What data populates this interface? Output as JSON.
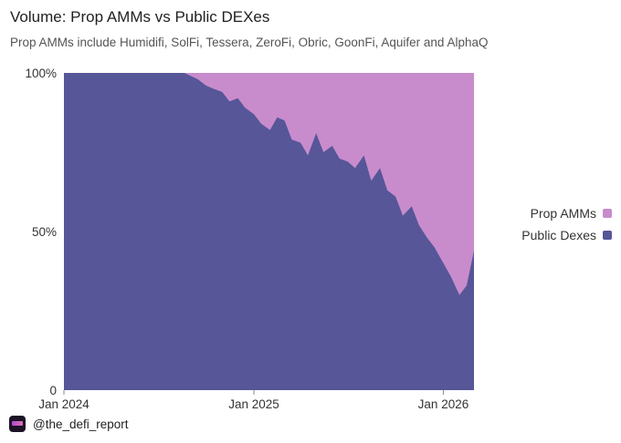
{
  "header": {
    "title": "Volume: Prop AMMs vs Public DEXes",
    "subtitle": "Prop AMMs include Humidifi, SolFi, Tessera, ZeroFi, Obric, GoonFi, Aquifer and AlphaQ"
  },
  "footer": {
    "handle": "@the_defi_report",
    "logo_icon": "defi-report-logo-icon"
  },
  "colors": {
    "prop": "#c88ccc",
    "public": "#565698"
  },
  "chart_data": {
    "type": "area",
    "stacked": true,
    "normalized": true,
    "title": "Volume: Prop AMMs vs Public DEXes",
    "subtitle": "Prop AMMs include Humidifi, SolFi, Tessera, ZeroFi, Obric, GoonFi, Aquifer and AlphaQ",
    "x_ticks": [
      "Jan 2024",
      "Jan 2025",
      "Jan 2026"
    ],
    "y_ticks": [
      "0",
      "50%",
      "100%"
    ],
    "ylim": [
      0,
      100
    ],
    "xlim": [
      "2024-01-01",
      "2026-03-01"
    ],
    "legend_position": "right",
    "legend": [
      "Prop AMMs",
      "Public Dexes"
    ],
    "x": [
      "2024-01-01",
      "2024-03-01",
      "2024-05-01",
      "2024-07-01",
      "2024-08-20",
      "2024-09-15",
      "2024-10-01",
      "2024-10-15",
      "2024-11-01",
      "2024-11-15",
      "2024-12-01",
      "2024-12-15",
      "2025-01-01",
      "2025-01-15",
      "2025-02-01",
      "2025-02-15",
      "2025-03-01",
      "2025-03-15",
      "2025-04-01",
      "2025-04-15",
      "2025-05-01",
      "2025-05-15",
      "2025-06-01",
      "2025-06-15",
      "2025-07-01",
      "2025-07-15",
      "2025-08-01",
      "2025-08-15",
      "2025-09-01",
      "2025-09-15",
      "2025-10-01",
      "2025-10-15",
      "2025-11-01",
      "2025-11-15",
      "2025-12-01",
      "2025-12-15",
      "2026-01-01",
      "2026-01-15",
      "2026-02-01",
      "2026-02-15",
      "2026-03-01"
    ],
    "series": [
      {
        "name": "Public Dexes",
        "values": [
          100,
          100,
          100,
          100,
          100,
          98,
          96,
          95,
          94,
          91,
          92,
          89,
          87,
          84,
          82,
          86,
          85,
          79,
          78,
          74,
          81,
          75,
          77,
          73,
          72,
          70,
          74,
          66,
          70,
          63,
          61,
          55,
          58,
          52,
          48,
          45,
          40,
          36,
          30,
          33,
          44
        ]
      },
      {
        "name": "Prop AMMs",
        "values": [
          0,
          0,
          0,
          0,
          0,
          2,
          4,
          5,
          6,
          9,
          8,
          11,
          13,
          16,
          18,
          14,
          15,
          21,
          22,
          26,
          19,
          25,
          23,
          27,
          28,
          30,
          26,
          34,
          30,
          37,
          39,
          45,
          42,
          48,
          52,
          55,
          60,
          64,
          70,
          67,
          56
        ]
      }
    ]
  }
}
